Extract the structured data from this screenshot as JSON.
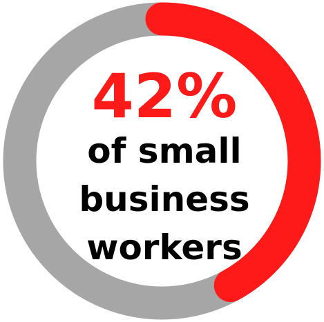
{
  "chart_data": {
    "type": "pie",
    "values": [
      42,
      58
    ],
    "total": 100,
    "value_label": "42%",
    "caption_lines": [
      "of small",
      "business",
      "workers"
    ],
    "colors": {
      "highlight": "#ff1a1a",
      "remainder": "#a6a6a6",
      "value_text": "#ff1a1a",
      "caption_text": "#000000",
      "background": "#ffffff"
    }
  }
}
